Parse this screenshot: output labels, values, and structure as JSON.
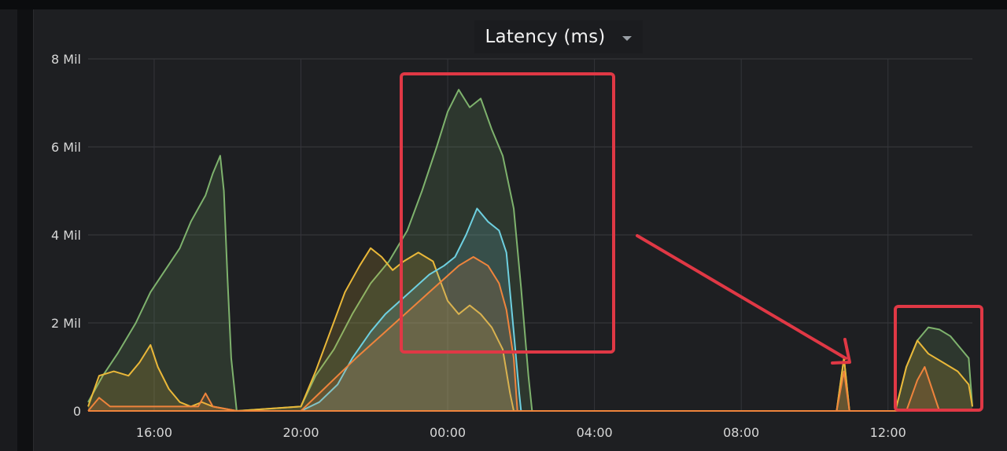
{
  "panel": {
    "title": "Latency (ms)",
    "menu_icon": "chevron-down-icon"
  },
  "chart_data": {
    "type": "area",
    "title": "Latency (ms)",
    "xlabel": "",
    "ylabel": "",
    "x_ticks": [
      "16:00",
      "20:00",
      "00:00",
      "04:00",
      "08:00",
      "12:00"
    ],
    "y_ticks": [
      "0",
      "2 Mil",
      "4 Mil",
      "6 Mil",
      "8 Mil"
    ],
    "x_range_hours": [
      14.2,
      38.3
    ],
    "ylim": [
      0,
      8000000
    ],
    "grid": true,
    "legend": "none",
    "series": [
      {
        "color": "#7eb26d",
        "points": [
          [
            14.2,
            0.2
          ],
          [
            14.6,
            0.8
          ],
          [
            15.0,
            1.3
          ],
          [
            15.5,
            2.0
          ],
          [
            15.9,
            2.7
          ],
          [
            16.3,
            3.2
          ],
          [
            16.7,
            3.7
          ],
          [
            17.0,
            4.3
          ],
          [
            17.4,
            4.9
          ],
          [
            17.6,
            5.4
          ],
          [
            17.8,
            5.8
          ],
          [
            17.9,
            5.0
          ],
          [
            18.0,
            3.0
          ],
          [
            18.1,
            1.2
          ],
          [
            18.25,
            0
          ],
          [
            20.0,
            0.1
          ],
          [
            20.4,
            0.8
          ],
          [
            20.9,
            1.4
          ],
          [
            21.4,
            2.2
          ],
          [
            21.9,
            2.9
          ],
          [
            22.4,
            3.4
          ],
          [
            22.9,
            4.1
          ],
          [
            23.3,
            5.0
          ],
          [
            23.7,
            6.0
          ],
          [
            24.0,
            6.8
          ],
          [
            24.3,
            7.3
          ],
          [
            24.6,
            6.9
          ],
          [
            24.9,
            7.1
          ],
          [
            25.2,
            6.4
          ],
          [
            25.5,
            5.8
          ],
          [
            25.8,
            4.6
          ],
          [
            26.0,
            2.8
          ],
          [
            26.2,
            0.8
          ],
          [
            26.3,
            0
          ],
          [
            34.6,
            0
          ],
          [
            34.8,
            1.2
          ],
          [
            34.95,
            0
          ],
          [
            36.2,
            0
          ],
          [
            36.5,
            1.0
          ],
          [
            36.8,
            1.6
          ],
          [
            37.1,
            1.9
          ],
          [
            37.4,
            1.85
          ],
          [
            37.7,
            1.7
          ],
          [
            38.0,
            1.4
          ],
          [
            38.2,
            1.2
          ],
          [
            38.3,
            0.1
          ]
        ]
      },
      {
        "color": "#eab839",
        "points": [
          [
            14.2,
            0.1
          ],
          [
            14.5,
            0.8
          ],
          [
            14.9,
            0.9
          ],
          [
            15.3,
            0.8
          ],
          [
            15.6,
            1.1
          ],
          [
            15.9,
            1.5
          ],
          [
            16.1,
            1.0
          ],
          [
            16.4,
            0.5
          ],
          [
            16.7,
            0.2
          ],
          [
            17.0,
            0.1
          ],
          [
            17.3,
            0.2
          ],
          [
            17.6,
            0.1
          ],
          [
            18.25,
            0
          ],
          [
            20.0,
            0.1
          ],
          [
            20.4,
            0.9
          ],
          [
            20.8,
            1.8
          ],
          [
            21.2,
            2.7
          ],
          [
            21.6,
            3.3
          ],
          [
            21.9,
            3.7
          ],
          [
            22.2,
            3.5
          ],
          [
            22.5,
            3.2
          ],
          [
            22.8,
            3.4
          ],
          [
            23.2,
            3.6
          ],
          [
            23.6,
            3.4
          ],
          [
            24.0,
            2.5
          ],
          [
            24.3,
            2.2
          ],
          [
            24.6,
            2.4
          ],
          [
            24.9,
            2.2
          ],
          [
            25.2,
            1.9
          ],
          [
            25.5,
            1.4
          ],
          [
            25.7,
            0.4
          ],
          [
            25.8,
            0
          ],
          [
            34.6,
            0
          ],
          [
            34.8,
            1.2
          ],
          [
            34.95,
            0
          ],
          [
            36.2,
            0
          ],
          [
            36.5,
            1.0
          ],
          [
            36.8,
            1.6
          ],
          [
            37.1,
            1.3
          ],
          [
            37.5,
            1.1
          ],
          [
            37.9,
            0.9
          ],
          [
            38.2,
            0.6
          ],
          [
            38.3,
            0.1
          ]
        ]
      },
      {
        "color": "#6ed0e0",
        "points": [
          [
            20.0,
            0
          ],
          [
            20.5,
            0.2
          ],
          [
            21.0,
            0.6
          ],
          [
            21.4,
            1.2
          ],
          [
            21.9,
            1.8
          ],
          [
            22.3,
            2.2
          ],
          [
            22.7,
            2.5
          ],
          [
            23.1,
            2.8
          ],
          [
            23.5,
            3.1
          ],
          [
            23.9,
            3.3
          ],
          [
            24.2,
            3.5
          ],
          [
            24.5,
            4.0
          ],
          [
            24.8,
            4.6
          ],
          [
            25.1,
            4.3
          ],
          [
            25.4,
            4.1
          ],
          [
            25.6,
            3.6
          ],
          [
            25.8,
            1.8
          ],
          [
            25.95,
            0.4
          ],
          [
            26.0,
            0
          ]
        ]
      },
      {
        "color": "#ef843c",
        "points": [
          [
            14.2,
            0
          ],
          [
            14.5,
            0.3
          ],
          [
            14.8,
            0.1
          ],
          [
            17.2,
            0.1
          ],
          [
            17.4,
            0.4
          ],
          [
            17.6,
            0.1
          ],
          [
            18.25,
            0
          ],
          [
            20.0,
            0
          ],
          [
            20.5,
            0.4
          ],
          [
            21.0,
            0.8
          ],
          [
            21.5,
            1.2
          ],
          [
            21.9,
            1.5
          ],
          [
            22.3,
            1.8
          ],
          [
            22.7,
            2.1
          ],
          [
            23.1,
            2.4
          ],
          [
            23.5,
            2.7
          ],
          [
            23.9,
            3.0
          ],
          [
            24.3,
            3.3
          ],
          [
            24.7,
            3.5
          ],
          [
            25.1,
            3.3
          ],
          [
            25.4,
            2.9
          ],
          [
            25.6,
            2.3
          ],
          [
            25.8,
            1.2
          ],
          [
            25.9,
            0
          ],
          [
            34.6,
            0
          ],
          [
            34.8,
            0.9
          ],
          [
            34.95,
            0
          ],
          [
            36.5,
            0
          ],
          [
            36.8,
            0.7
          ],
          [
            37.0,
            1.0
          ],
          [
            37.2,
            0.5
          ],
          [
            37.4,
            0
          ]
        ]
      }
    ]
  }
}
